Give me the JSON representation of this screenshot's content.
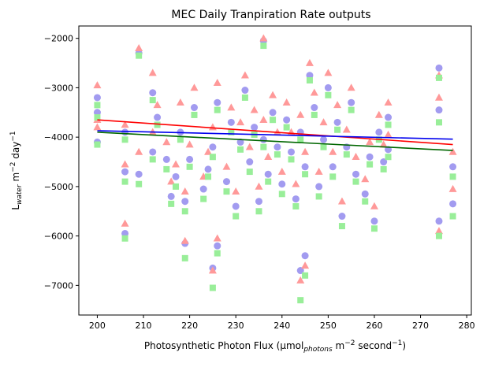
{
  "chart_data": {
    "type": "scatter",
    "title": "MEC Daily Tranpiration Rate outputs",
    "xlabel": {
      "pre": "Photosynthetic Photon Flux (µmol",
      "sub": "photons",
      "mid": " m",
      "sup1": "−2",
      "post": " second",
      "sup2": "−1",
      "close": ")"
    },
    "ylabel": {
      "pre": "L",
      "sub": "water",
      "mid": " m",
      "sup1": "−2",
      "post": " day",
      "sup2": "−1"
    },
    "xlim": [
      196,
      281
    ],
    "ylim": [
      -7600,
      -1750
    ],
    "xticks": [
      200,
      210,
      220,
      230,
      240,
      250,
      260,
      270,
      280
    ],
    "xtick_labels": [
      "200",
      "210",
      "220",
      "230",
      "240",
      "250",
      "260",
      "270",
      "280"
    ],
    "yticks": [
      -7000,
      -6000,
      -5000,
      -4000,
      -3000,
      -2000
    ],
    "ytick_labels": [
      "−7000",
      "−6000",
      "−5000",
      "−4000",
      "−3000",
      "−2000"
    ],
    "grid": false,
    "series": [
      {
        "marker": "circle",
        "color": "#a29bf0",
        "points": [
          [
            200,
            -4100
          ],
          [
            200,
            -3200
          ],
          [
            200,
            -3500
          ],
          [
            206,
            -5950
          ],
          [
            206,
            -4700
          ],
          [
            206,
            -3900
          ],
          [
            209,
            -4750
          ],
          [
            209,
            -2300
          ],
          [
            212,
            -4300
          ],
          [
            212,
            -3100
          ],
          [
            213,
            -3600
          ],
          [
            215,
            -4450
          ],
          [
            216,
            -5200
          ],
          [
            217,
            -4800
          ],
          [
            218,
            -3900
          ],
          [
            219,
            -6150
          ],
          [
            219,
            -5300
          ],
          [
            220,
            -4450
          ],
          [
            221,
            -3400
          ],
          [
            223,
            -5050
          ],
          [
            224,
            -4650
          ],
          [
            225,
            -6650
          ],
          [
            225,
            -4200
          ],
          [
            226,
            -6200
          ],
          [
            226,
            -3300
          ],
          [
            228,
            -4900
          ],
          [
            229,
            -3700
          ],
          [
            230,
            -5400
          ],
          [
            231,
            -4100
          ],
          [
            232,
            -3050
          ],
          [
            233,
            -4500
          ],
          [
            234,
            -3800
          ],
          [
            235,
            -5300
          ],
          [
            236,
            -2050
          ],
          [
            236,
            -4050
          ],
          [
            237,
            -4750
          ],
          [
            238,
            -3500
          ],
          [
            239,
            -4200
          ],
          [
            240,
            -4950
          ],
          [
            241,
            -3650
          ],
          [
            242,
            -4300
          ],
          [
            243,
            -5250
          ],
          [
            244,
            -6700
          ],
          [
            244,
            -3900
          ],
          [
            245,
            -6400
          ],
          [
            245,
            -4600
          ],
          [
            246,
            -2750
          ],
          [
            247,
            -3400
          ],
          [
            248,
            -5000
          ],
          [
            249,
            -4050
          ],
          [
            250,
            -3000
          ],
          [
            251,
            -4600
          ],
          [
            252,
            -3700
          ],
          [
            253,
            -5600
          ],
          [
            254,
            -4200
          ],
          [
            255,
            -3300
          ],
          [
            256,
            -4750
          ],
          [
            258,
            -5150
          ],
          [
            259,
            -4400
          ],
          [
            260,
            -5700
          ],
          [
            261,
            -3900
          ],
          [
            262,
            -4500
          ],
          [
            263,
            -3600
          ],
          [
            263,
            -4250
          ],
          [
            274,
            -5700
          ],
          [
            274,
            -3450
          ],
          [
            274,
            -2600
          ],
          [
            277,
            -5350
          ],
          [
            277,
            -4600
          ]
        ]
      },
      {
        "marker": "triangle",
        "color": "#ff9999",
        "points": [
          [
            200,
            -2950
          ],
          [
            200,
            -3650
          ],
          [
            200,
            -3800
          ],
          [
            206,
            -5750
          ],
          [
            206,
            -4550
          ],
          [
            206,
            -3750
          ],
          [
            209,
            -4300
          ],
          [
            209,
            -2200
          ],
          [
            212,
            -3900
          ],
          [
            212,
            -2700
          ],
          [
            213,
            -3350
          ],
          [
            215,
            -4100
          ],
          [
            216,
            -4900
          ],
          [
            217,
            -4550
          ],
          [
            218,
            -3300
          ],
          [
            219,
            -6100
          ],
          [
            219,
            -5100
          ],
          [
            220,
            -4150
          ],
          [
            221,
            -3000
          ],
          [
            223,
            -4800
          ],
          [
            224,
            -4300
          ],
          [
            225,
            -6700
          ],
          [
            225,
            -3800
          ],
          [
            226,
            -6050
          ],
          [
            226,
            -2900
          ],
          [
            228,
            -4600
          ],
          [
            229,
            -3400
          ],
          [
            230,
            -5100
          ],
          [
            231,
            -3700
          ],
          [
            232,
            -2750
          ],
          [
            233,
            -4200
          ],
          [
            234,
            -3450
          ],
          [
            235,
            -5000
          ],
          [
            236,
            -2000
          ],
          [
            236,
            -3650
          ],
          [
            237,
            -4400
          ],
          [
            238,
            -3150
          ],
          [
            239,
            -3900
          ],
          [
            240,
            -4700
          ],
          [
            241,
            -3300
          ],
          [
            242,
            -3900
          ],
          [
            243,
            -4950
          ],
          [
            244,
            -6900
          ],
          [
            244,
            -3550
          ],
          [
            245,
            -6600
          ],
          [
            245,
            -4300
          ],
          [
            246,
            -2500
          ],
          [
            247,
            -3100
          ],
          [
            248,
            -4700
          ],
          [
            249,
            -3700
          ],
          [
            250,
            -2700
          ],
          [
            251,
            -4300
          ],
          [
            252,
            -3350
          ],
          [
            253,
            -5300
          ],
          [
            254,
            -3850
          ],
          [
            255,
            -3000
          ],
          [
            256,
            -4400
          ],
          [
            258,
            -4850
          ],
          [
            259,
            -4100
          ],
          [
            260,
            -5400
          ],
          [
            261,
            -3550
          ],
          [
            262,
            -4150
          ],
          [
            263,
            -3300
          ],
          [
            263,
            -3950
          ],
          [
            274,
            -5900
          ],
          [
            274,
            -3200
          ],
          [
            274,
            -2750
          ],
          [
            277,
            -5050
          ],
          [
            277,
            -4300
          ]
        ]
      },
      {
        "marker": "square",
        "color": "#99ee99",
        "points": [
          [
            200,
            -4150
          ],
          [
            200,
            -3350
          ],
          [
            200,
            -3600
          ],
          [
            206,
            -6050
          ],
          [
            206,
            -4900
          ],
          [
            206,
            -4050
          ],
          [
            209,
            -4950
          ],
          [
            209,
            -2350
          ],
          [
            212,
            -4450
          ],
          [
            212,
            -3250
          ],
          [
            213,
            -3750
          ],
          [
            215,
            -4650
          ],
          [
            216,
            -5350
          ],
          [
            217,
            -5000
          ],
          [
            218,
            -4050
          ],
          [
            219,
            -6450
          ],
          [
            219,
            -5500
          ],
          [
            220,
            -4600
          ],
          [
            221,
            -3550
          ],
          [
            223,
            -5250
          ],
          [
            224,
            -4800
          ],
          [
            225,
            -7050
          ],
          [
            225,
            -4400
          ],
          [
            226,
            -6350
          ],
          [
            226,
            -3450
          ],
          [
            228,
            -5100
          ],
          [
            229,
            -3900
          ],
          [
            230,
            -5600
          ],
          [
            231,
            -4250
          ],
          [
            232,
            -3200
          ],
          [
            233,
            -4700
          ],
          [
            234,
            -3950
          ],
          [
            235,
            -5500
          ],
          [
            236,
            -2150
          ],
          [
            236,
            -4200
          ],
          [
            237,
            -4900
          ],
          [
            238,
            -3650
          ],
          [
            239,
            -4350
          ],
          [
            240,
            -5150
          ],
          [
            241,
            -3800
          ],
          [
            242,
            -4450
          ],
          [
            243,
            -5400
          ],
          [
            244,
            -7300
          ],
          [
            244,
            -4050
          ],
          [
            245,
            -6800
          ],
          [
            245,
            -4750
          ],
          [
            246,
            -2850
          ],
          [
            247,
            -3550
          ],
          [
            248,
            -5200
          ],
          [
            249,
            -4200
          ],
          [
            250,
            -3150
          ],
          [
            251,
            -4800
          ],
          [
            252,
            -3850
          ],
          [
            253,
            -5800
          ],
          [
            254,
            -4350
          ],
          [
            255,
            -3450
          ],
          [
            256,
            -4900
          ],
          [
            258,
            -5300
          ],
          [
            259,
            -4550
          ],
          [
            260,
            -5850
          ],
          [
            261,
            -4050
          ],
          [
            262,
            -4650
          ],
          [
            263,
            -3750
          ],
          [
            263,
            -4400
          ],
          [
            274,
            -6000
          ],
          [
            274,
            -3700
          ],
          [
            274,
            -2800
          ],
          [
            277,
            -5600
          ],
          [
            277,
            -4800
          ]
        ]
      }
    ],
    "trend_lines": [
      {
        "color": "#ff0000",
        "x": [
          200,
          277
        ],
        "y": [
          -3650,
          -4150
        ]
      },
      {
        "color": "#0000ee",
        "x": [
          200,
          277
        ],
        "y": [
          -3870,
          -4040
        ]
      },
      {
        "color": "#006600",
        "x": [
          200,
          277
        ],
        "y": [
          -3900,
          -4270
        ]
      }
    ]
  }
}
